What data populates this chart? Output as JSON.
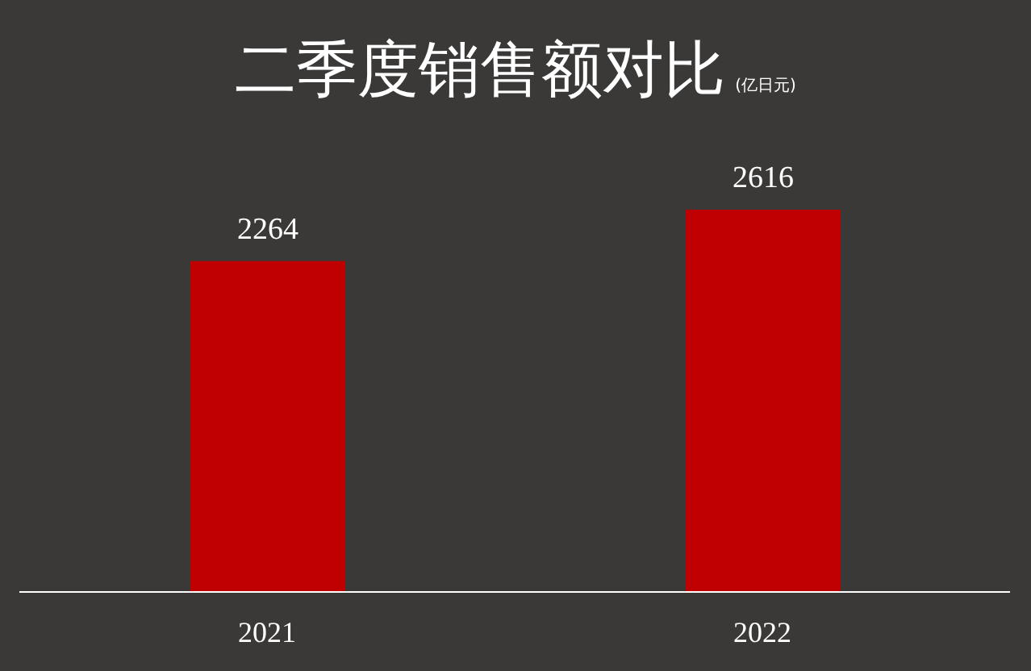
{
  "chart_data": {
    "type": "bar",
    "title": "二季度销售额对比",
    "subtitle": "(亿日元)",
    "categories": [
      "2021",
      "2022"
    ],
    "values": [
      2264,
      2616
    ],
    "color": "#c00000",
    "data_labels": true
  }
}
